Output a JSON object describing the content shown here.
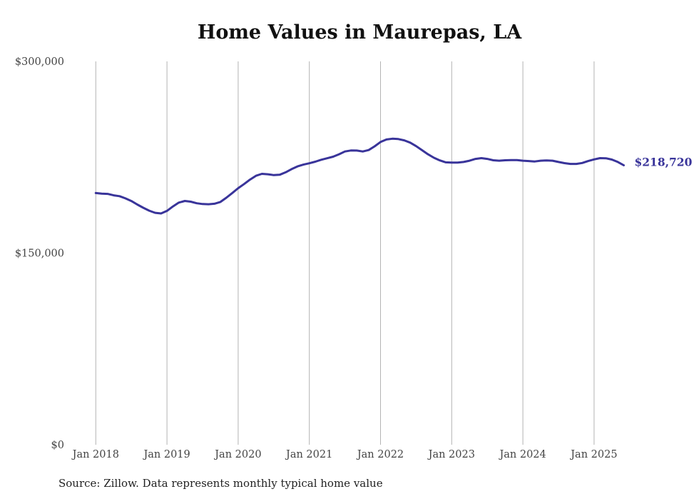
{
  "chart_data": {
    "type": "line",
    "title": "Home Values in Maurepas, LA",
    "xlabel": "",
    "ylabel": "",
    "ylim": [
      0,
      300000
    ],
    "y_ticks": [
      {
        "value": 0,
        "label": "$0"
      },
      {
        "value": 150000,
        "label": "$150,000"
      },
      {
        "value": 300000,
        "label": "$300,000"
      }
    ],
    "x_ticks": [
      "Jan 2018",
      "Jan 2019",
      "Jan 2020",
      "Jan 2021",
      "Jan 2022",
      "Jan 2023",
      "Jan 2024",
      "Jan 2025"
    ],
    "grid": "vertical at x ticks",
    "series": [
      {
        "color": "#39349a",
        "x": [
          "2018-01",
          "2018-02",
          "2018-03",
          "2018-04",
          "2018-05",
          "2018-06",
          "2018-07",
          "2018-08",
          "2018-09",
          "2018-10",
          "2018-11",
          "2018-12",
          "2019-01",
          "2019-02",
          "2019-03",
          "2019-04",
          "2019-05",
          "2019-06",
          "2019-07",
          "2019-08",
          "2019-09",
          "2019-10",
          "2019-11",
          "2019-12",
          "2020-01",
          "2020-02",
          "2020-03",
          "2020-04",
          "2020-05",
          "2020-06",
          "2020-07",
          "2020-08",
          "2020-09",
          "2020-10",
          "2020-11",
          "2020-12",
          "2021-01",
          "2021-02",
          "2021-03",
          "2021-04",
          "2021-05",
          "2021-06",
          "2021-07",
          "2021-08",
          "2021-09",
          "2021-10",
          "2021-11",
          "2021-12",
          "2022-01",
          "2022-02",
          "2022-03",
          "2022-04",
          "2022-05",
          "2022-06",
          "2022-07",
          "2022-08",
          "2022-09",
          "2022-10",
          "2022-11",
          "2022-12",
          "2023-01",
          "2023-02",
          "2023-03",
          "2023-04",
          "2023-05",
          "2023-06",
          "2023-07",
          "2023-08",
          "2023-09",
          "2023-10",
          "2023-11",
          "2023-12",
          "2024-01",
          "2024-02",
          "2024-03",
          "2024-04",
          "2024-05",
          "2024-06",
          "2024-07",
          "2024-08",
          "2024-09",
          "2024-10",
          "2024-11",
          "2024-12",
          "2025-01",
          "2025-02",
          "2025-03",
          "2025-04",
          "2025-05",
          "2025-06"
        ],
        "y": [
          197000,
          196500,
          196300,
          195200,
          194500,
          192800,
          190700,
          188000,
          185500,
          183200,
          181500,
          181000,
          183000,
          186500,
          189500,
          190800,
          190200,
          189000,
          188400,
          188200,
          188600,
          190000,
          193300,
          197000,
          200800,
          204000,
          207500,
          210500,
          212000,
          211700,
          211000,
          211300,
          213200,
          215700,
          217800,
          219200,
          220300,
          221500,
          223000,
          224200,
          225400,
          227300,
          229500,
          230300,
          230200,
          229500,
          230600,
          233500,
          236900,
          238900,
          239500,
          239200,
          238200,
          236400,
          233700,
          230500,
          227300,
          224600,
          222500,
          221000,
          220800,
          220800,
          221300,
          222300,
          223700,
          224300,
          223700,
          222600,
          222300,
          222600,
          222800,
          222800,
          222300,
          222000,
          221700,
          222300,
          222500,
          222300,
          221300,
          220400,
          219800,
          219800,
          220500,
          222000,
          223300,
          224300,
          224200,
          223200,
          221300,
          218720
        ],
        "end_label": "$218,720"
      }
    ]
  },
  "source": "Source: Zillow. Data represents monthly typical home value"
}
